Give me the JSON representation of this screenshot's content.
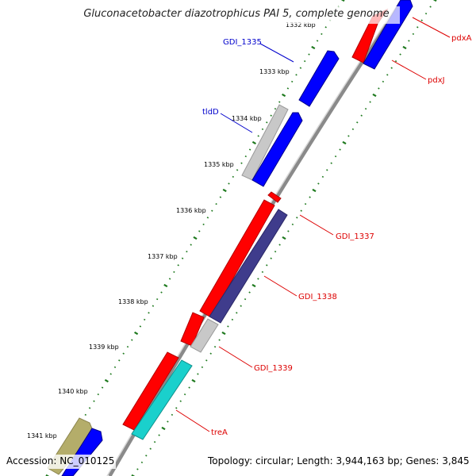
{
  "title": "Gluconacetobacter diazotrophicus PAI 5, complete genome",
  "accession": "Accession: NC_010125",
  "summary": "Topology: circular; Length: 3,944,163 bp; Genes: 3,845",
  "colors": {
    "backbone": "#8a8a8a",
    "tick": "#1f7a1f",
    "gene_red": "#ff0000",
    "gene_blue": "#0000ff",
    "gene_gray": "#c8c8c8",
    "gene_navy": "#3f3c8c",
    "gene_cyan": "#1ad0cc",
    "gene_olive": "#b4ad6a",
    "label_blue": "#0000cc",
    "label_red": "#dd0000"
  },
  "kbp_labels": [
    "1332 kbp",
    "1333 kbp",
    "1334 kbp",
    "1335 kbp",
    "1336 kbp",
    "1337 kbp",
    "1338 kbp",
    "1339 kbp",
    "1340 kbp",
    "1341 kbp"
  ],
  "genes": [
    {
      "name": "GDI_1335",
      "color": "blue"
    },
    {
      "name": "tldD",
      "color": "blue"
    },
    {
      "name": "pdxA",
      "color": "red"
    },
    {
      "name": "pdxJ",
      "color": "red"
    },
    {
      "name": "GDI_1337",
      "color": "red"
    },
    {
      "name": "GDI_1338",
      "color": "red"
    },
    {
      "name": "GDI_1339",
      "color": "red"
    },
    {
      "name": "treA",
      "color": "red"
    }
  ]
}
